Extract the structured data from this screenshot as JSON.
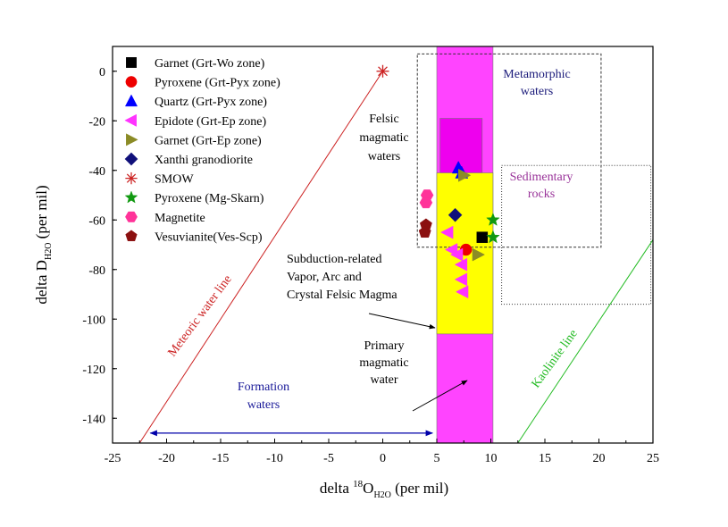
{
  "chart_data": {
    "type": "scatter",
    "xlim": [
      -25,
      25
    ],
    "ylim": [
      -150,
      10
    ],
    "xticks": [
      -25,
      -20,
      -15,
      -10,
      -5,
      0,
      5,
      10,
      15,
      20,
      25
    ],
    "yticks": [
      0,
      -20,
      -40,
      -60,
      -80,
      -100,
      -120,
      -140
    ],
    "xlabel": {
      "pre": "delta ",
      "sup": "18",
      "main": "O",
      "sub": "H2O",
      "post": " (per mil)"
    },
    "ylabel": {
      "main": "delta D",
      "sub": "H2O",
      "post": " (per mil)"
    },
    "regions": [
      {
        "name": "Primary magmatic water band",
        "x": [
          5,
          10.2
        ],
        "y": [
          -150,
          10
        ],
        "color": "#ff44ff"
      },
      {
        "name": "Felsic magmatic waters box",
        "x": [
          5.3,
          9.2
        ],
        "y": [
          -43,
          -19
        ],
        "color": "#ee00ee"
      },
      {
        "name": "Subduction-related box",
        "x": [
          5,
          10.2
        ],
        "y": [
          -106,
          -41
        ],
        "color": "#ffff00"
      },
      {
        "name": "Metamorphic waters box",
        "x": [
          3.2,
          20.2
        ],
        "y": [
          -71,
          7
        ],
        "color": "none",
        "dash": "3,2"
      },
      {
        "name": "Sedimentary rocks box",
        "x": [
          11,
          24.8
        ],
        "y": [
          -94,
          -38
        ],
        "color": "none",
        "dash": "1,2"
      }
    ],
    "lines": [
      {
        "name": "Meteoric water line",
        "from": [
          -22.5,
          -150
        ],
        "to": [
          0,
          0
        ],
        "color": "#cc2222"
      },
      {
        "name": "Kaolinite line",
        "from": [
          12.5,
          -150
        ],
        "to": [
          25,
          -68
        ],
        "color": "#22bb22"
      },
      {
        "name": "Formation waters range",
        "from": [
          -21.5,
          -146
        ],
        "to": [
          4.6,
          -146
        ],
        "color": "#0000aa",
        "arrows": true
      }
    ],
    "series": [
      {
        "name": "Garnet (Grt-Wo zone)",
        "marker": "square",
        "color": "#000000",
        "points": [
          [
            9.2,
            -67
          ]
        ]
      },
      {
        "name": "Pyroxene (Grt-Pyx zone)",
        "marker": "circle",
        "color": "#ee0000",
        "points": [
          [
            7.7,
            -72
          ]
        ]
      },
      {
        "name": "Quartz (Grt-Pyx zone)",
        "marker": "triangle-up",
        "color": "#0000ff",
        "points": [
          [
            7.0,
            -39
          ],
          [
            7.3,
            -41
          ]
        ]
      },
      {
        "name": "Epidote (Grt-Ep zone)",
        "marker": "triangle-left",
        "color": "#ff33ff",
        "points": [
          [
            6.0,
            -65
          ],
          [
            6.4,
            -72
          ],
          [
            6.9,
            -74
          ],
          [
            7.3,
            -78
          ],
          [
            7.3,
            -84
          ],
          [
            7.4,
            -89
          ]
        ]
      },
      {
        "name": "Garnet (Grt-Ep zone)",
        "marker": "triangle-right",
        "color": "#8b8b26",
        "points": [
          [
            7.5,
            -42
          ],
          [
            8.8,
            -74
          ]
        ]
      },
      {
        "name": "Xanthi granodiorite",
        "marker": "diamond",
        "color": "#10107a",
        "points": [
          [
            6.7,
            -58
          ]
        ]
      },
      {
        "name": "SMOW",
        "marker": "asterisk",
        "color": "#cc2222",
        "points": [
          [
            0,
            0
          ]
        ]
      },
      {
        "name": "Pyroxene (Mg-Skarn)",
        "marker": "star",
        "color": "#119911",
        "points": [
          [
            10.2,
            -60
          ],
          [
            10.2,
            -67
          ]
        ]
      },
      {
        "name": "Magnetite",
        "marker": "hexagon",
        "color": "#ff3399",
        "points": [
          [
            4.1,
            -50
          ],
          [
            4.0,
            -53
          ]
        ]
      },
      {
        "name": "Vesuvianite(Ves-Scp)",
        "marker": "pentagon",
        "color": "#8b1010",
        "points": [
          [
            4.0,
            -62
          ],
          [
            3.9,
            -65
          ]
        ]
      }
    ],
    "annotations": [
      {
        "key": "metamorphic",
        "lines": [
          "Metamorphic",
          "waters"
        ],
        "color": "#1a1a7a"
      },
      {
        "key": "felsic",
        "lines": [
          "Felsic",
          "magmatic",
          "waters"
        ],
        "color": "#000000"
      },
      {
        "key": "sedimentary",
        "lines": [
          "Sedimentary",
          "rocks"
        ],
        "color": "#993399"
      },
      {
        "key": "subduction",
        "lines": [
          "Subduction-related",
          "Vapor, Arc and",
          "Crystal Felsic Magma"
        ],
        "color": "#000000"
      },
      {
        "key": "primary",
        "lines": [
          "Primary",
          "magmatic",
          "water"
        ],
        "color": "#000000"
      },
      {
        "key": "formation",
        "lines": [
          "Formation",
          "waters"
        ],
        "color": "#1a1a99"
      },
      {
        "key": "meteoric",
        "lines": [
          "Meteoric water line"
        ],
        "color": "#cc2222"
      },
      {
        "key": "kaolinite",
        "lines": [
          "Kaolinite line"
        ],
        "color": "#22bb22"
      }
    ]
  }
}
